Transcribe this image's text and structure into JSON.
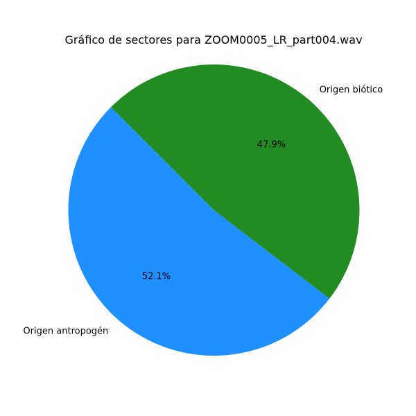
{
  "chart_data": {
    "type": "pie",
    "title": "Gráfico de sectores para ZOOM0005_LR_part004.wav",
    "slices": [
      {
        "label": "Origen antropogén",
        "value": 52.1,
        "pct_label": "52.1%",
        "color": "#1e90ff"
      },
      {
        "label": "Origen biótico",
        "value": 47.9,
        "pct_label": "47.9%",
        "color": "#228b22"
      }
    ],
    "start_angle_deg": 135,
    "direction": "counterclockwise"
  }
}
